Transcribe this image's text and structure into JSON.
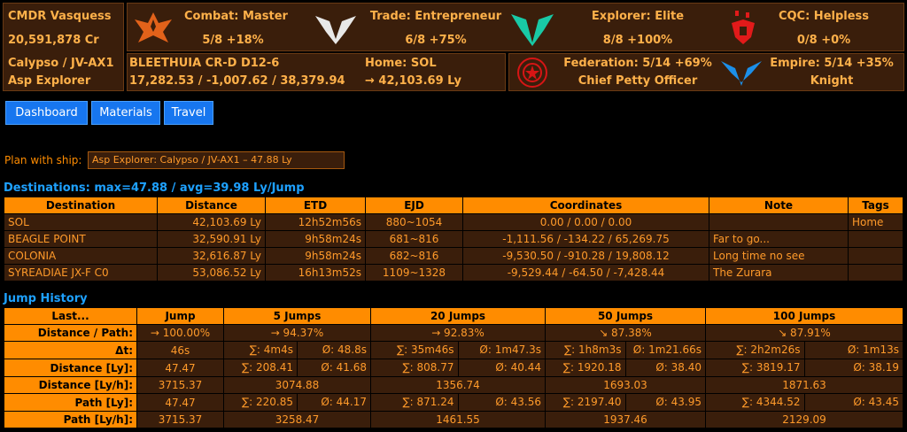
{
  "cmdr": {
    "name": "CMDR Vasquess",
    "credits": "20,591,878 Cr",
    "ship_name": "Calypso / JV-AX1",
    "ship_type": "Asp Explorer"
  },
  "ranks": {
    "combat": {
      "label": "Combat: Master",
      "progress": "5/8 +18%",
      "icon": "combat-rank-icon",
      "color": "#e2621a"
    },
    "trade": {
      "label": "Trade: Entrepreneur",
      "progress": "6/8 +75%",
      "icon": "trade-rank-icon",
      "color": "#e8e8e8"
    },
    "explorer": {
      "label": "Explorer: Elite",
      "progress": "8/8 +100%",
      "icon": "explorer-rank-icon",
      "color": "#19c9a6"
    },
    "cqc": {
      "label": "CQC: Helpless",
      "progress": "0/8 +0%",
      "icon": "cqc-rank-icon",
      "color": "#e21a1a"
    }
  },
  "location": {
    "system": "BLEETHUIA CR-D D12-6",
    "coords": "17,282.53 / -1,007.62 / 38,379.94",
    "home_label": "Home: SOL",
    "home_dist": "→ 42,103.69 Ly"
  },
  "factions": {
    "federation": {
      "label": "Federation: 5/14 +69%",
      "title": "Chief Petty Officer",
      "icon": "federation-emblem-icon",
      "color": "#d61515"
    },
    "empire": {
      "label": "Empire: 5/14 +35%",
      "title": "Knight",
      "icon": "empire-emblem-icon",
      "color": "#1c8fe8"
    }
  },
  "nav": {
    "dashboard": "Dashboard",
    "materials": "Materials",
    "travel": "Travel"
  },
  "plan": {
    "label": "Plan with ship:",
    "value": "Asp Explorer: Calypso / JV-AX1 – 47.88 Ly"
  },
  "destinations": {
    "title": "Destinations: max=47.88 / avg=39.98 Ly/Jump",
    "headers": [
      "Destination",
      "Distance",
      "ETD",
      "EJD",
      "Coordinates",
      "Note",
      "Tags"
    ],
    "rows": [
      [
        "SOL",
        "42,103.69 Ly",
        "12h52m56s",
        "880~1054",
        "0.00 / 0.00 / 0.00",
        "",
        "Home"
      ],
      [
        "BEAGLE POINT",
        "32,590.91 Ly",
        "9h58m24s",
        "681~816",
        "-1,111.56 / -134.22 / 65,269.75",
        "Far to go...",
        ""
      ],
      [
        "COLONIA",
        "32,616.87 Ly",
        "9h58m24s",
        "682~816",
        "-9,530.50 / -910.28 / 19,808.12",
        "Long time no see",
        ""
      ],
      [
        "SYREADIAE JX-F C0",
        "53,086.52 Ly",
        "16h13m52s",
        "1109~1328",
        "-9,529.44 / -64.50 / -7,428.44",
        "The Zurara",
        ""
      ]
    ]
  },
  "history": {
    "title": "Jump History",
    "headers": [
      "Last...",
      "Jump",
      "5 Jumps",
      "20 Jumps",
      "50 Jumps",
      "100 Jumps"
    ],
    "rows": [
      {
        "label": "Distance / Path:",
        "jump": "→ 100.00%",
        "cols": [
          [
            "→ 94.37%"
          ],
          [
            "→ 92.83%"
          ],
          [
            "↘ 87.38%"
          ],
          [
            "↘ 87.91%"
          ]
        ]
      },
      {
        "label": "Δt:",
        "jump": "46s",
        "cols": [
          [
            "∑: 4m4s",
            "Ø: 48.8s"
          ],
          [
            "∑: 35m46s",
            "Ø: 1m47.3s"
          ],
          [
            "∑: 1h8m3s",
            "Ø: 1m21.66s"
          ],
          [
            "∑: 2h2m26s",
            "Ø: 1m13s"
          ]
        ]
      },
      {
        "label": "Distance [Ly]:",
        "jump": "47.47",
        "cols": [
          [
            "∑: 208.41",
            "Ø: 41.68"
          ],
          [
            "∑: 808.77",
            "Ø: 40.44"
          ],
          [
            "∑: 1920.18",
            "Ø: 38.40"
          ],
          [
            "∑: 3819.17",
            "Ø: 38.19"
          ]
        ]
      },
      {
        "label": "Distance [Ly/h]:",
        "jump": "3715.37",
        "cols": [
          [
            "3074.88"
          ],
          [
            "1356.74"
          ],
          [
            "1693.03"
          ],
          [
            "1871.63"
          ]
        ]
      },
      {
        "label": "Path [Ly]:",
        "jump": "47.47",
        "cols": [
          [
            "∑: 220.85",
            "Ø: 44.17"
          ],
          [
            "∑: 871.24",
            "Ø: 43.56"
          ],
          [
            "∑: 2197.40",
            "Ø: 43.95"
          ],
          [
            "∑: 4344.52",
            "Ø: 43.45"
          ]
        ]
      },
      {
        "label": "Path [Ly/h]:",
        "jump": "3715.37",
        "cols": [
          [
            "3258.47"
          ],
          [
            "1461.55"
          ],
          [
            "1937.46"
          ],
          [
            "2129.09"
          ]
        ]
      }
    ]
  }
}
